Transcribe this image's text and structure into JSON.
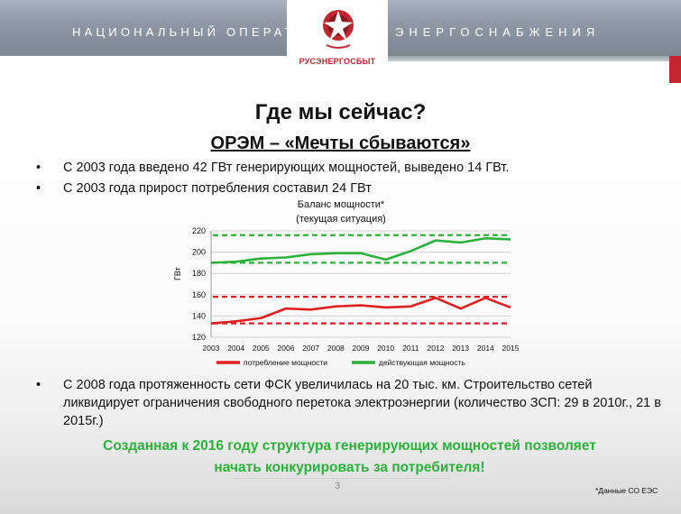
{
  "header": {
    "left_text": "НАЦИОНАЛЬНЫЙ ОПЕРАТОР",
    "right_text": "ЭНЕРГОСНАБЖЕНИЯ",
    "logo_text": "РУСЭНЕРГОСБЫТ",
    "logo_icon": "star-logo-icon",
    "brand_color": "#c3262e"
  },
  "title": "Где мы сейчас?",
  "subtitle": "ОРЭМ – «Мечты сбываются»",
  "bullets": [
    "С 2003 года введено 42 ГВт генерирующих мощностей, выведено 14 ГВт.",
    "С 2003 года прирост потребления составил 24 ГВт",
    "С 2008 года протяженность сети ФСК увеличилась на 20 тыс. км. Строительство сетей ликвидирует ограничения свободного перетока электроэнергии (количество ЗСП: 29 в 2010г., 21 в 2015г.)"
  ],
  "bullet_glyph": "•",
  "chart_data": {
    "type": "line",
    "title": "Баланс мощности*",
    "subtitle": "(текущая ситуация)",
    "ylabel": "ГВт",
    "ylim": [
      120,
      220
    ],
    "yticks": [
      120,
      140,
      160,
      180,
      200,
      220
    ],
    "grid": true,
    "legend_position": "bottom",
    "x": [
      "2003",
      "2004",
      "2005",
      "2006",
      "2007",
      "2008",
      "2009",
      "2010",
      "2011",
      "2012",
      "2013",
      "2014",
      "2015"
    ],
    "series": [
      {
        "name": "потребление мощности",
        "color": "#e02020",
        "values": [
          133,
          135,
          138,
          147,
          146,
          149,
          150,
          148,
          149,
          157,
          147,
          157,
          148
        ],
        "reference_lines": [
          133,
          158
        ]
      },
      {
        "name": "действующая мощность",
        "color": "#2bb13a",
        "values": [
          190,
          191,
          194,
          195,
          198,
          199,
          199,
          193,
          201,
          211,
          209,
          213,
          212
        ],
        "reference_lines": [
          190,
          216
        ]
      }
    ]
  },
  "conclusion": {
    "line1": "Созданная к 2016 году структура генерирующих мощностей позволяет",
    "line2": "начать конкурировать за потребителя!"
  },
  "page_number": "3",
  "footnote": "*Данные СО ЕЭС"
}
